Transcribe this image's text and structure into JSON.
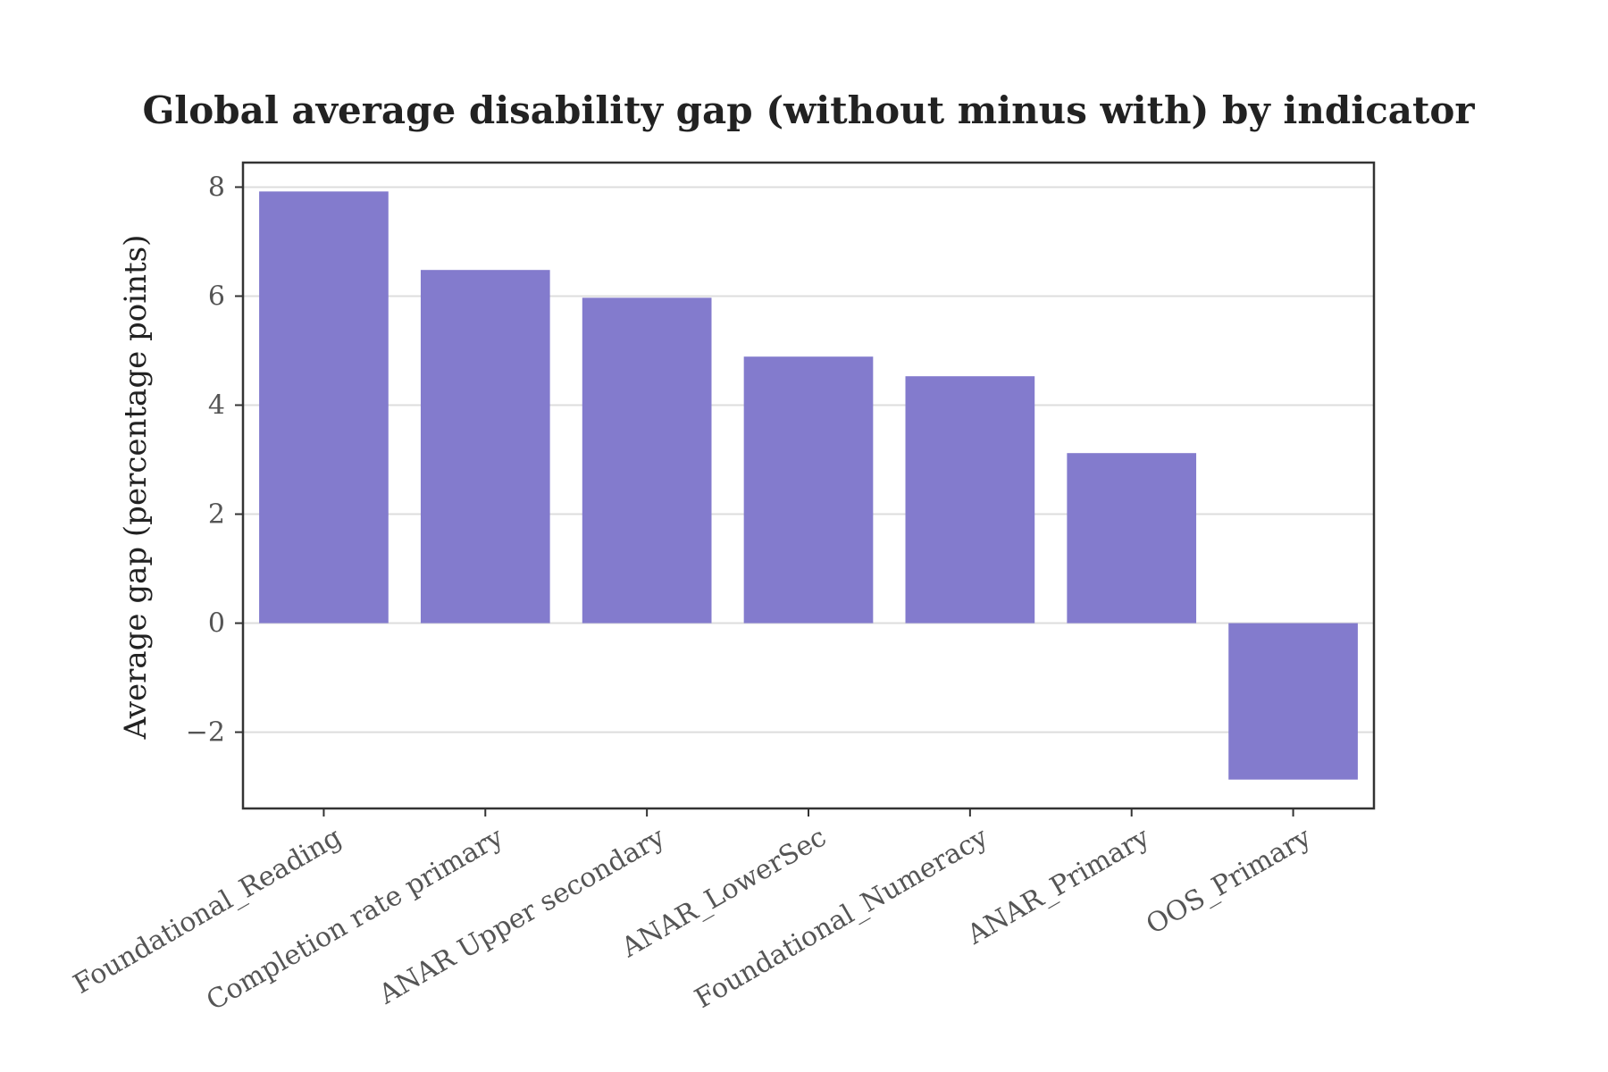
{
  "chart_data": {
    "type": "bar",
    "title": "Global average disability gap (without minus with) by indicator",
    "xlabel": "",
    "ylabel": "Average gap (percentage points)",
    "categories": [
      "Foundational_Reading",
      "Completion rate primary",
      "ANAR Upper secondary",
      "ANAR_LowerSec",
      "Foundational_Numeracy",
      "ANAR_Primary",
      "OOS_Primary"
    ],
    "values": [
      7.92,
      6.48,
      5.97,
      4.89,
      4.53,
      3.12,
      -2.87
    ],
    "ylim": [
      -3.4,
      8.45
    ],
    "yticks": [
      -2,
      0,
      2,
      4,
      6,
      8
    ],
    "ytick_labels": [
      "−2",
      "0",
      "2",
      "4",
      "6",
      "8"
    ],
    "grid": true,
    "bar_color": "#837bcd"
  }
}
